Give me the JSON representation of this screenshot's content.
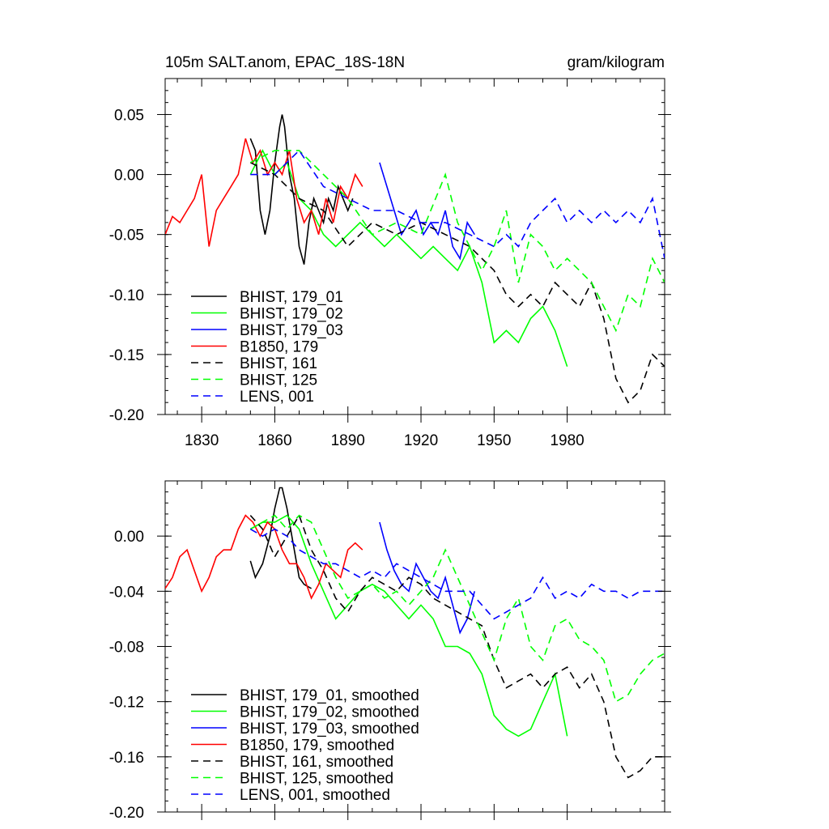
{
  "figure": {
    "title_left": "105m SALT.anom, EPAC_18S-18N",
    "title_right": "gram/kilogram"
  },
  "colors": {
    "black": "#000000",
    "green": "#00ff00",
    "blue": "#0000ff",
    "red": "#ff0000"
  },
  "chart_data": [
    {
      "type": "line",
      "title": "105m SALT.anom, EPAC_18S-18N",
      "units": "gram/kilogram",
      "xlim": [
        1815,
        2020
      ],
      "ylim": [
        -0.2,
        0.08
      ],
      "xticks": [
        1830,
        1860,
        1890,
        1920,
        1950,
        1980
      ],
      "xtick_labels": [
        "1830",
        "1860",
        "1890",
        "1920",
        "1950",
        "1980"
      ],
      "yticks": [
        0.05,
        0.0,
        -0.05,
        -0.1,
        -0.15,
        -0.2
      ],
      "ytick_labels": [
        "0.05",
        "0.00",
        "-0.05",
        "-0.10",
        "-0.15",
        "-0.20"
      ],
      "legend_position": "bottom-left",
      "series": [
        {
          "name": "BHIST, 179_01",
          "color": "#000000",
          "dash": "solid",
          "x": [
            1850,
            1852,
            1854,
            1856,
            1858,
            1860,
            1862,
            1863,
            1864,
            1866,
            1868,
            1870,
            1872,
            1874,
            1876,
            1878,
            1880,
            1882,
            1884,
            1886,
            1888,
            1890,
            1892
          ],
          "values": [
            0.03,
            0.02,
            -0.03,
            -0.05,
            -0.03,
            0.01,
            0.04,
            0.05,
            0.04,
            0.0,
            -0.02,
            -0.06,
            -0.075,
            -0.04,
            -0.02,
            -0.03,
            -0.04,
            -0.02,
            -0.03,
            -0.01,
            -0.02,
            -0.03,
            -0.02
          ]
        },
        {
          "name": "BHIST, 179_02",
          "color": "#00ff00",
          "dash": "solid",
          "x": [
            1850,
            1855,
            1860,
            1865,
            1870,
            1875,
            1880,
            1885,
            1890,
            1895,
            1900,
            1905,
            1910,
            1915,
            1920,
            1925,
            1930,
            1935,
            1940,
            1945,
            1950,
            1955,
            1960,
            1965,
            1970,
            1975,
            1980
          ],
          "values": [
            0.0,
            0.02,
            0.0,
            0.01,
            -0.02,
            -0.03,
            -0.05,
            -0.06,
            -0.05,
            -0.04,
            -0.05,
            -0.06,
            -0.05,
            -0.06,
            -0.07,
            -0.06,
            -0.07,
            -0.08,
            -0.06,
            -0.09,
            -0.14,
            -0.13,
            -0.14,
            -0.12,
            -0.11,
            -0.13,
            -0.16
          ]
        },
        {
          "name": "BHIST, 179_03",
          "color": "#0000ff",
          "dash": "solid",
          "x": [
            1903,
            1906,
            1909,
            1912,
            1915,
            1918,
            1921,
            1924,
            1927,
            1930,
            1933,
            1936,
            1939,
            1942
          ],
          "values": [
            0.01,
            -0.01,
            -0.03,
            -0.05,
            -0.04,
            -0.03,
            -0.05,
            -0.04,
            -0.05,
            -0.03,
            -0.06,
            -0.07,
            -0.04,
            -0.05
          ]
        },
        {
          "name": "B1850, 179",
          "color": "#ff0000",
          "dash": "solid",
          "x": [
            1815,
            1818,
            1821,
            1824,
            1827,
            1830,
            1833,
            1836,
            1839,
            1842,
            1845,
            1848,
            1851,
            1854,
            1857,
            1860,
            1863,
            1866,
            1869,
            1872,
            1875,
            1878,
            1881,
            1884,
            1887,
            1890,
            1893,
            1896
          ],
          "values": [
            -0.05,
            -0.035,
            -0.04,
            -0.03,
            -0.02,
            0.0,
            -0.06,
            -0.03,
            -0.02,
            -0.01,
            0.0,
            0.03,
            0.01,
            0.02,
            0.0,
            0.01,
            0.0,
            0.02,
            -0.02,
            -0.04,
            -0.03,
            -0.05,
            -0.02,
            -0.04,
            -0.01,
            -0.02,
            0.0,
            -0.01
          ]
        },
        {
          "name": "BHIST, 161",
          "color": "#000000",
          "dash": "dashed",
          "x": [
            1850,
            1860,
            1870,
            1880,
            1890,
            1900,
            1910,
            1920,
            1930,
            1940,
            1950,
            1955,
            1960,
            1965,
            1970,
            1975,
            1980,
            1985,
            1990,
            1995,
            2000,
            2005,
            2010,
            2015,
            2020
          ],
          "values": [
            0.01,
            0.0,
            -0.02,
            -0.03,
            -0.06,
            -0.04,
            -0.05,
            -0.04,
            -0.05,
            -0.06,
            -0.08,
            -0.1,
            -0.11,
            -0.1,
            -0.11,
            -0.09,
            -0.1,
            -0.11,
            -0.09,
            -0.12,
            -0.17,
            -0.19,
            -0.18,
            -0.15,
            -0.16
          ]
        },
        {
          "name": "BHIST, 125",
          "color": "#00ff00",
          "dash": "dashed",
          "x": [
            1850,
            1860,
            1870,
            1880,
            1890,
            1900,
            1910,
            1920,
            1930,
            1935,
            1940,
            1945,
            1950,
            1955,
            1960,
            1965,
            1970,
            1975,
            1980,
            1985,
            1990,
            1995,
            2000,
            2005,
            2010,
            2015,
            2020
          ],
          "values": [
            0.01,
            0.02,
            0.02,
            0.0,
            -0.02,
            -0.05,
            -0.04,
            -0.05,
            0.0,
            -0.04,
            -0.06,
            -0.08,
            -0.06,
            -0.03,
            -0.09,
            -0.05,
            -0.06,
            -0.08,
            -0.07,
            -0.08,
            -0.09,
            -0.11,
            -0.13,
            -0.1,
            -0.11,
            -0.07,
            -0.09
          ]
        },
        {
          "name": "LENS, 001",
          "color": "#0000ff",
          "dash": "dashed",
          "x": [
            1850,
            1860,
            1870,
            1880,
            1890,
            1900,
            1910,
            1920,
            1930,
            1940,
            1950,
            1955,
            1960,
            1965,
            1970,
            1975,
            1980,
            1985,
            1990,
            1995,
            2000,
            2005,
            2010,
            2015,
            2020
          ],
          "values": [
            0.0,
            0.0,
            0.02,
            -0.01,
            -0.02,
            -0.03,
            -0.03,
            -0.04,
            -0.04,
            -0.05,
            -0.06,
            -0.05,
            -0.06,
            -0.04,
            -0.03,
            -0.02,
            -0.04,
            -0.03,
            -0.04,
            -0.03,
            -0.04,
            -0.03,
            -0.04,
            -0.02,
            -0.07
          ]
        }
      ]
    },
    {
      "type": "line",
      "title": "",
      "xlim": [
        1815,
        2020
      ],
      "ylim": [
        -0.2,
        0.04
      ],
      "xticks": [
        1830,
        1860,
        1890,
        1920,
        1950,
        1980
      ],
      "yticks": [
        0.0,
        -0.04,
        -0.08,
        -0.12,
        -0.16,
        -0.2
      ],
      "ytick_labels": [
        "0.00",
        "-0.04",
        "-0.08",
        "-0.12",
        "-0.16",
        "-0.20"
      ],
      "legend_position": "bottom-left",
      "series": [
        {
          "name": "BHIST, 179_01, smoothed",
          "color": "#000000",
          "dash": "solid",
          "x": [
            1850,
            1852,
            1855,
            1858,
            1860,
            1862,
            1863,
            1865,
            1867,
            1870,
            1872,
            1875
          ],
          "values": [
            -0.018,
            -0.03,
            -0.02,
            0.0,
            0.02,
            0.035,
            0.035,
            0.02,
            0.0,
            -0.03,
            -0.035,
            -0.038
          ]
        },
        {
          "name": "BHIST, 179_02, smoothed",
          "color": "#00ff00",
          "dash": "solid",
          "x": [
            1850,
            1855,
            1860,
            1865,
            1870,
            1875,
            1880,
            1885,
            1890,
            1895,
            1900,
            1905,
            1910,
            1915,
            1920,
            1925,
            1930,
            1935,
            1940,
            1945,
            1950,
            1955,
            1960,
            1965,
            1970,
            1975,
            1980
          ],
          "values": [
            0.005,
            0.01,
            0.01,
            0.015,
            0.005,
            -0.02,
            -0.04,
            -0.06,
            -0.05,
            -0.04,
            -0.035,
            -0.04,
            -0.05,
            -0.06,
            -0.05,
            -0.06,
            -0.08,
            -0.08,
            -0.085,
            -0.1,
            -0.13,
            -0.14,
            -0.145,
            -0.14,
            -0.12,
            -0.1,
            -0.145
          ]
        },
        {
          "name": "BHIST, 179_03, smoothed",
          "color": "#0000ff",
          "dash": "solid",
          "x": [
            1903,
            1906,
            1909,
            1912,
            1915,
            1918,
            1921,
            1924,
            1927,
            1930,
            1933,
            1936,
            1939,
            1942
          ],
          "values": [
            0.01,
            -0.01,
            -0.025,
            -0.035,
            -0.04,
            -0.02,
            -0.03,
            -0.04,
            -0.045,
            -0.03,
            -0.05,
            -0.07,
            -0.06,
            -0.04
          ]
        },
        {
          "name": "B1850, 179, smoothed",
          "color": "#ff0000",
          "dash": "solid",
          "x": [
            1815,
            1818,
            1821,
            1824,
            1827,
            1830,
            1833,
            1836,
            1839,
            1842,
            1845,
            1848,
            1851,
            1854,
            1857,
            1860,
            1863,
            1866,
            1869,
            1872,
            1875,
            1878,
            1881,
            1884,
            1887,
            1890,
            1893,
            1896
          ],
          "values": [
            -0.038,
            -0.03,
            -0.015,
            -0.01,
            -0.025,
            -0.04,
            -0.03,
            -0.015,
            -0.01,
            -0.01,
            0.005,
            0.015,
            0.01,
            0.0,
            0.01,
            0.005,
            -0.01,
            -0.02,
            -0.02,
            -0.03,
            -0.045,
            -0.035,
            -0.02,
            -0.025,
            -0.03,
            -0.01,
            -0.005,
            -0.01
          ]
        },
        {
          "name": "BHIST, 161, smoothed",
          "color": "#000000",
          "dash": "dashed",
          "x": [
            1850,
            1855,
            1860,
            1865,
            1870,
            1875,
            1880,
            1885,
            1890,
            1895,
            1900,
            1905,
            1910,
            1915,
            1920,
            1925,
            1930,
            1935,
            1940,
            1945,
            1950,
            1955,
            1960,
            1965,
            1970,
            1975,
            1980,
            1985,
            1990,
            1995,
            2000,
            2005,
            2010,
            2015,
            2020
          ],
          "values": [
            0.015,
            0.005,
            -0.015,
            0.0,
            0.015,
            -0.01,
            -0.025,
            -0.045,
            -0.055,
            -0.04,
            -0.03,
            -0.035,
            -0.04,
            -0.03,
            -0.035,
            -0.045,
            -0.05,
            -0.055,
            -0.06,
            -0.065,
            -0.09,
            -0.11,
            -0.105,
            -0.1,
            -0.11,
            -0.1,
            -0.095,
            -0.11,
            -0.1,
            -0.12,
            -0.16,
            -0.175,
            -0.17,
            -0.16,
            -0.16
          ]
        },
        {
          "name": "BHIST, 125, smoothed",
          "color": "#00ff00",
          "dash": "dashed",
          "x": [
            1850,
            1855,
            1860,
            1865,
            1870,
            1875,
            1880,
            1885,
            1890,
            1895,
            1900,
            1905,
            1910,
            1915,
            1920,
            1925,
            1930,
            1935,
            1940,
            1945,
            1950,
            1955,
            1960,
            1965,
            1970,
            1975,
            1980,
            1985,
            1990,
            1995,
            2000,
            2005,
            2010,
            2015,
            2020
          ],
          "values": [
            0.005,
            0.01,
            0.015,
            0.005,
            0.015,
            0.01,
            -0.01,
            -0.03,
            -0.045,
            -0.04,
            -0.035,
            -0.045,
            -0.04,
            -0.05,
            -0.04,
            -0.03,
            -0.01,
            -0.03,
            -0.05,
            -0.07,
            -0.09,
            -0.06,
            -0.045,
            -0.08,
            -0.09,
            -0.065,
            -0.06,
            -0.075,
            -0.08,
            -0.09,
            -0.12,
            -0.115,
            -0.1,
            -0.09,
            -0.085
          ]
        },
        {
          "name": "LENS, 001, smoothed",
          "color": "#0000ff",
          "dash": "dashed",
          "x": [
            1850,
            1855,
            1860,
            1865,
            1870,
            1875,
            1880,
            1885,
            1890,
            1895,
            1900,
            1905,
            1910,
            1915,
            1920,
            1925,
            1930,
            1935,
            1940,
            1945,
            1950,
            1955,
            1960,
            1965,
            1970,
            1975,
            1980,
            1985,
            1990,
            1995,
            2000,
            2005,
            2010,
            2015,
            2020
          ],
          "values": [
            0.005,
            0.0,
            0.005,
            0.0,
            -0.01,
            -0.015,
            -0.02,
            -0.02,
            -0.025,
            -0.03,
            -0.025,
            -0.03,
            -0.02,
            -0.025,
            -0.03,
            -0.035,
            -0.04,
            -0.04,
            -0.04,
            -0.05,
            -0.06,
            -0.055,
            -0.05,
            -0.045,
            -0.03,
            -0.045,
            -0.04,
            -0.045,
            -0.035,
            -0.04,
            -0.04,
            -0.045,
            -0.04,
            -0.04,
            -0.04
          ]
        }
      ]
    }
  ]
}
